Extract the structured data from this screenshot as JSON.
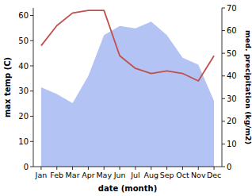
{
  "chart_data": {
    "type": "line",
    "categories": [
      "Jan",
      "Feb",
      "Mar",
      "Apr",
      "May",
      "Jun",
      "Jul",
      "Aug",
      "Sep",
      "Oct",
      "Nov",
      "Dec"
    ],
    "x_label": "date (month)",
    "y_label": "max temp (C)",
    "y2_label": "med. precipitation (kg/m2)",
    "ylim": [
      0,
      63
    ],
    "yticks": [
      0,
      10,
      20,
      30,
      40,
      50,
      60
    ],
    "y2lim": [
      0,
      70
    ],
    "y2ticks": [
      0,
      10,
      20,
      30,
      40,
      50,
      60,
      70
    ],
    "series": [
      {
        "name": "max temp",
        "type": "line",
        "color": "#c0504d",
        "values": [
          48,
          56,
          61,
          62,
          62,
          44,
          39,
          37,
          38,
          37,
          34,
          44
        ]
      },
      {
        "name": "med. precipitation",
        "type": "area",
        "axis": "y2",
        "color": "#b3c3f3",
        "values": [
          35,
          32,
          28,
          40,
          58,
          62,
          61,
          64,
          58,
          48,
          45,
          29
        ]
      }
    ]
  }
}
